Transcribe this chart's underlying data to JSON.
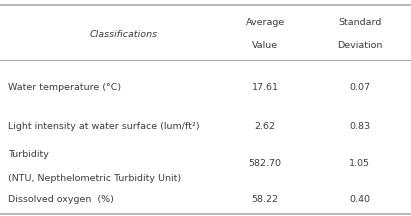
{
  "title_col1": "Classifications",
  "title_col2_line1": "Average",
  "title_col2_line2": "Value",
  "title_col3_line1": "Standard",
  "title_col3_line2": "Deviation",
  "rows": [
    {
      "label_line1": "Water temperature (°C)",
      "label_line2": null,
      "avg": "17.61",
      "std": "0.07"
    },
    {
      "label_line1": "Light intensity at water surface (lum/ft²)",
      "label_line2": null,
      "avg": "2.62",
      "std": "0.83"
    },
    {
      "label_line1": "Turbidity",
      "label_line2": "(NTU, Nepthelometric Turbidity Unit)",
      "avg": "582.70",
      "std": "1.05"
    },
    {
      "label_line1": "Dissolved oxygen  (%)",
      "label_line2": null,
      "avg": "58.22",
      "std": "0.40"
    }
  ],
  "bg_color": "#ffffff",
  "text_color": "#3d3d3d",
  "line_color": "#aaaaaa",
  "font_size": 6.8,
  "header_font_size": 6.8,
  "fig_width": 4.11,
  "fig_height": 2.16,
  "dpi": 100
}
